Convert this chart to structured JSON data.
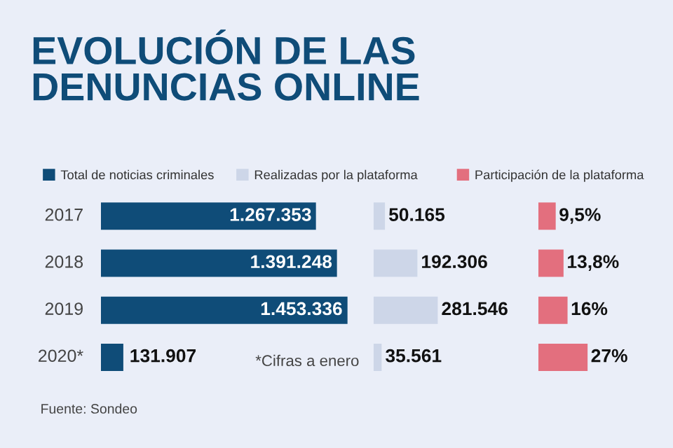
{
  "chart_data": [
    {
      "type": "bar",
      "orientation": "horizontal",
      "title": "EVOLUCIÓN DE LAS\nDENUNCIAS ONLINE",
      "categories": [
        "2017",
        "2018",
        "2019",
        "2020*"
      ],
      "legend": "top",
      "series": [
        {
          "name": "Total de noticias criminales",
          "color": "#0f4c78",
          "values": [
            1267353,
            1391248,
            1453336,
            131907
          ],
          "value_labels": [
            "1.267.353",
            "1.391.248",
            "1.453.336",
            "131.907"
          ]
        }
      ],
      "annotations": [
        "*Cifras a enero",
        "Fuente: Sondeo"
      ]
    },
    {
      "type": "bar",
      "orientation": "horizontal",
      "legend": "top",
      "series": [
        {
          "name": "Realizadas por la plataforma",
          "color": "#cdd6e8",
          "values": [
            50165,
            192306,
            281546,
            35561
          ],
          "value_labels": [
            "50.165",
            "192.306",
            "281.546",
            "35.561"
          ]
        }
      ]
    },
    {
      "type": "bar",
      "orientation": "horizontal",
      "legend": "top",
      "series": [
        {
          "name": "Participación de la plataforma",
          "color": "#e36f7e",
          "values": [
            9.5,
            13.8,
            16,
            27
          ],
          "value_labels": [
            "9,5%",
            "13,8%",
            "16%",
            "27%"
          ]
        }
      ]
    }
  ]
}
